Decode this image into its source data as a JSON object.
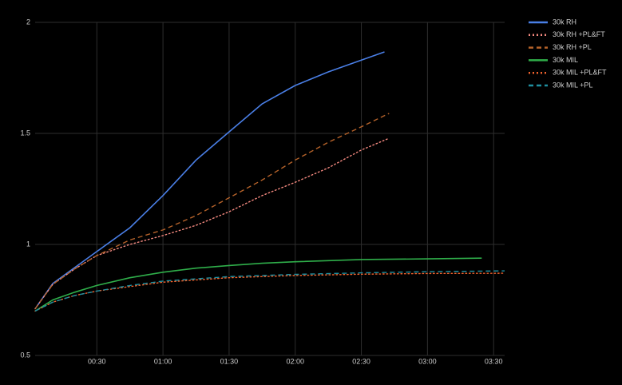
{
  "chart_data": {
    "type": "line",
    "x": null,
    "xlim": [
      2,
      215
    ],
    "ylim": [
      0.5,
      2.0
    ],
    "xticks": [
      {
        "value": 30,
        "label": "00:30"
      },
      {
        "value": 60,
        "label": "01:00"
      },
      {
        "value": 90,
        "label": "01:30"
      },
      {
        "value": 120,
        "label": "02:00"
      },
      {
        "value": 150,
        "label": "02:30"
      },
      {
        "value": 180,
        "label": "03:00"
      },
      {
        "value": 210,
        "label": "03:30"
      }
    ],
    "yticks": [
      0.5,
      1.0,
      1.5,
      2.0
    ],
    "grid": true,
    "legend": "right",
    "series": [
      {
        "name": "30k RH",
        "color": "#4a7fe6",
        "dash": "solid",
        "x": [
          2,
          10,
          20,
          30,
          45,
          60,
          75,
          90,
          105,
          120,
          135,
          150,
          160.5
        ],
        "values": [
          0.71,
          0.824,
          0.896,
          0.968,
          1.075,
          1.22,
          1.38,
          1.507,
          1.633,
          1.716,
          1.777,
          1.83,
          1.867
        ]
      },
      {
        "name": "30k RH +PL&FT",
        "color": "#f58a80",
        "dash": "dotted",
        "x": [
          2,
          10,
          20,
          30,
          45,
          60,
          75,
          90,
          105,
          120,
          135,
          150,
          162.6
        ],
        "values": [
          0.71,
          0.82,
          0.89,
          0.95,
          1.0,
          1.04,
          1.086,
          1.147,
          1.22,
          1.28,
          1.345,
          1.425,
          1.478
        ]
      },
      {
        "name": "30k RH +PL",
        "color": "#b5622a",
        "dash": "dashed",
        "x": [
          2,
          10,
          20,
          30,
          45,
          60,
          75,
          90,
          105,
          120,
          135,
          150,
          162.6
        ],
        "values": [
          0.71,
          0.82,
          0.89,
          0.95,
          1.02,
          1.065,
          1.13,
          1.21,
          1.29,
          1.38,
          1.46,
          1.53,
          1.59
        ]
      },
      {
        "name": "30k MIL",
        "color": "#2fae4a",
        "dash": "solid",
        "x": [
          2,
          10,
          20,
          30,
          45,
          60,
          75,
          90,
          105,
          120,
          150,
          180,
          204.6
        ],
        "values": [
          0.7,
          0.75,
          0.785,
          0.815,
          0.85,
          0.875,
          0.893,
          0.905,
          0.915,
          0.922,
          0.932,
          0.935,
          0.938
        ]
      },
      {
        "name": "30k MIL +PL&FT",
        "color": "#f0622d",
        "dash": "dotted",
        "x": [
          2,
          10,
          20,
          30,
          45,
          60,
          90,
          120,
          150,
          180,
          215
        ],
        "values": [
          0.7,
          0.74,
          0.77,
          0.79,
          0.81,
          0.83,
          0.85,
          0.86,
          0.866,
          0.869,
          0.87
        ]
      },
      {
        "name": "30k MIL +PL",
        "color": "#1f8fa0",
        "dash": "dashed",
        "x": [
          2,
          10,
          20,
          30,
          45,
          60,
          90,
          120,
          150,
          180,
          215
        ],
        "values": [
          0.7,
          0.74,
          0.77,
          0.79,
          0.815,
          0.835,
          0.855,
          0.865,
          0.872,
          0.877,
          0.881
        ]
      }
    ]
  }
}
